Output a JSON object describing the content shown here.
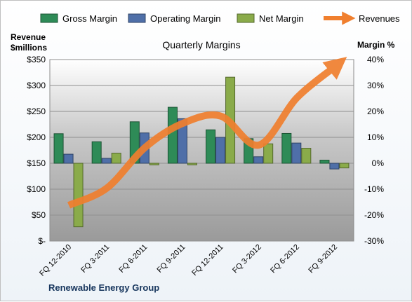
{
  "chart_data": {
    "type": "bar",
    "title": "Quarterly Margins",
    "footer": "Renewable Energy Group",
    "categories": [
      "FQ 12-2010",
      "FQ 3-2011",
      "FQ 6-2011",
      "FQ 9-2011",
      "FQ 12-2011",
      "FQ 3-2012",
      "FQ 6-2012",
      "FQ 9-2012"
    ],
    "series": [
      {
        "name": "Gross Margin",
        "kind": "bar",
        "axis": "right",
        "color": "#2e8b57",
        "values": [
          11.4,
          8.3,
          16.0,
          21.6,
          12.9,
          9.5,
          11.5,
          1.2
        ]
      },
      {
        "name": "Operating Margin",
        "kind": "bar",
        "axis": "right",
        "color": "#4f6fa8",
        "values": [
          3.5,
          1.9,
          11.7,
          17.2,
          10.0,
          2.5,
          7.8,
          -2.2
        ]
      },
      {
        "name": "Net Margin",
        "kind": "bar",
        "axis": "right",
        "color": "#8aab4a",
        "values": [
          -24.5,
          3.9,
          -0.6,
          -0.6,
          33.2,
          7.5,
          5.8,
          -1.8
        ]
      },
      {
        "name": "Revenues",
        "kind": "line",
        "axis": "left",
        "color": "#f07f2e",
        "values": [
          69,
          102,
          180,
          227,
          241,
          185,
          276,
          336
        ]
      }
    ],
    "y_left": {
      "label_line1": "Revenue",
      "label_line2": "$millions",
      "min": 0,
      "max": 350,
      "step": 50,
      "ticks": [
        "$-",
        "$50",
        "$100",
        "$150",
        "$200",
        "$250",
        "$300",
        "$350"
      ]
    },
    "y_right": {
      "label": "Margin %",
      "min": -30,
      "max": 40,
      "step": 10,
      "ticks": [
        "-30%",
        "-20%",
        "-10%",
        "0%",
        "10%",
        "20%",
        "30%",
        "40%"
      ]
    },
    "legend_position": "top",
    "grid": true
  }
}
